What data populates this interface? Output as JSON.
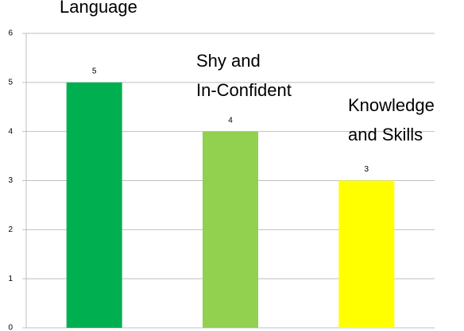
{
  "chart_data": {
    "type": "bar",
    "categories": [
      "Language",
      "Shy and\nIn-Confident",
      "Knowledge\nand Skills"
    ],
    "values": [
      5,
      4,
      3
    ],
    "colors": [
      "#00b050",
      "#92d050",
      "#ffff00"
    ],
    "ylim": [
      0,
      6
    ],
    "yticks": [
      0,
      1,
      2,
      3,
      4,
      5,
      6
    ],
    "grid": true
  }
}
